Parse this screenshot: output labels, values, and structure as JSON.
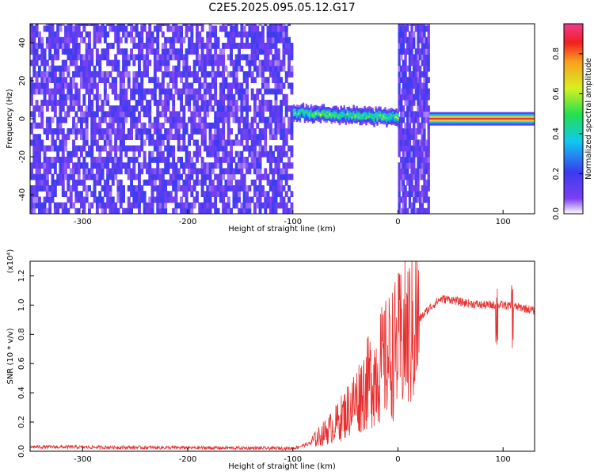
{
  "chart_data": [
    {
      "type": "heatmap",
      "title": "C2E5.2025.095.05.12.G17",
      "xlabel": "Height of straight line (km)",
      "ylabel": "Frequency (Hz)",
      "xlim": [
        -350,
        130
      ],
      "ylim": [
        -50,
        50
      ],
      "xticks": [
        -300,
        -200,
        -100,
        0,
        100
      ],
      "yticks": [
        -40,
        -20,
        0,
        20,
        40
      ],
      "colorbar": {
        "label": "Normalized spectral amplitude",
        "range": [
          0.0,
          0.95
        ],
        "ticks": [
          "0.0",
          "0.2",
          "0.4",
          "0.6",
          "0.8"
        ]
      },
      "regions": [
        {
          "x": [
            -350,
            -100
          ],
          "description_value": "broadband noise, amplitude 0.05-0.2"
        },
        {
          "x": [
            -100,
            0
          ],
          "frequency_hz": 2,
          "peak_amplitude": 0.55
        },
        {
          "x": [
            0,
            30
          ],
          "description_value": "broadband noise, amplitude 0.1-0.2"
        },
        {
          "x": [
            30,
            130
          ],
          "frequency_hz": 0,
          "peak_amplitude": 0.95
        }
      ]
    },
    {
      "type": "line",
      "xlabel": "Height of straight line (km)",
      "ylabel": "SNR (10 * v/v)",
      "scale_label": "(x10⁴)",
      "xlim": [
        -350,
        130
      ],
      "ylim": [
        0,
        1.3
      ],
      "xticks": [
        -300,
        -200,
        -100,
        0,
        100
      ],
      "yticks": [
        0.0,
        0.2,
        0.4,
        0.6,
        0.8,
        1.0,
        1.2
      ],
      "series": [
        {
          "name": "SNR",
          "color": "#e83030",
          "x": [
            -350,
            -100,
            -85,
            -75,
            -60,
            -50,
            -40,
            -30,
            -20,
            -10,
            0,
            10,
            20,
            30,
            40,
            50,
            60,
            70,
            80,
            90,
            100,
            110,
            120,
            130
          ],
          "y": [
            0.03,
            0.02,
            0.05,
            0.1,
            0.18,
            0.26,
            0.35,
            0.45,
            0.55,
            0.63,
            0.72,
            0.8,
            0.9,
            0.98,
            1.04,
            1.04,
            1.02,
            1.01,
            1.0,
            1.0,
            1.0,
            0.99,
            0.98,
            0.96
          ]
        }
      ]
    }
  ]
}
